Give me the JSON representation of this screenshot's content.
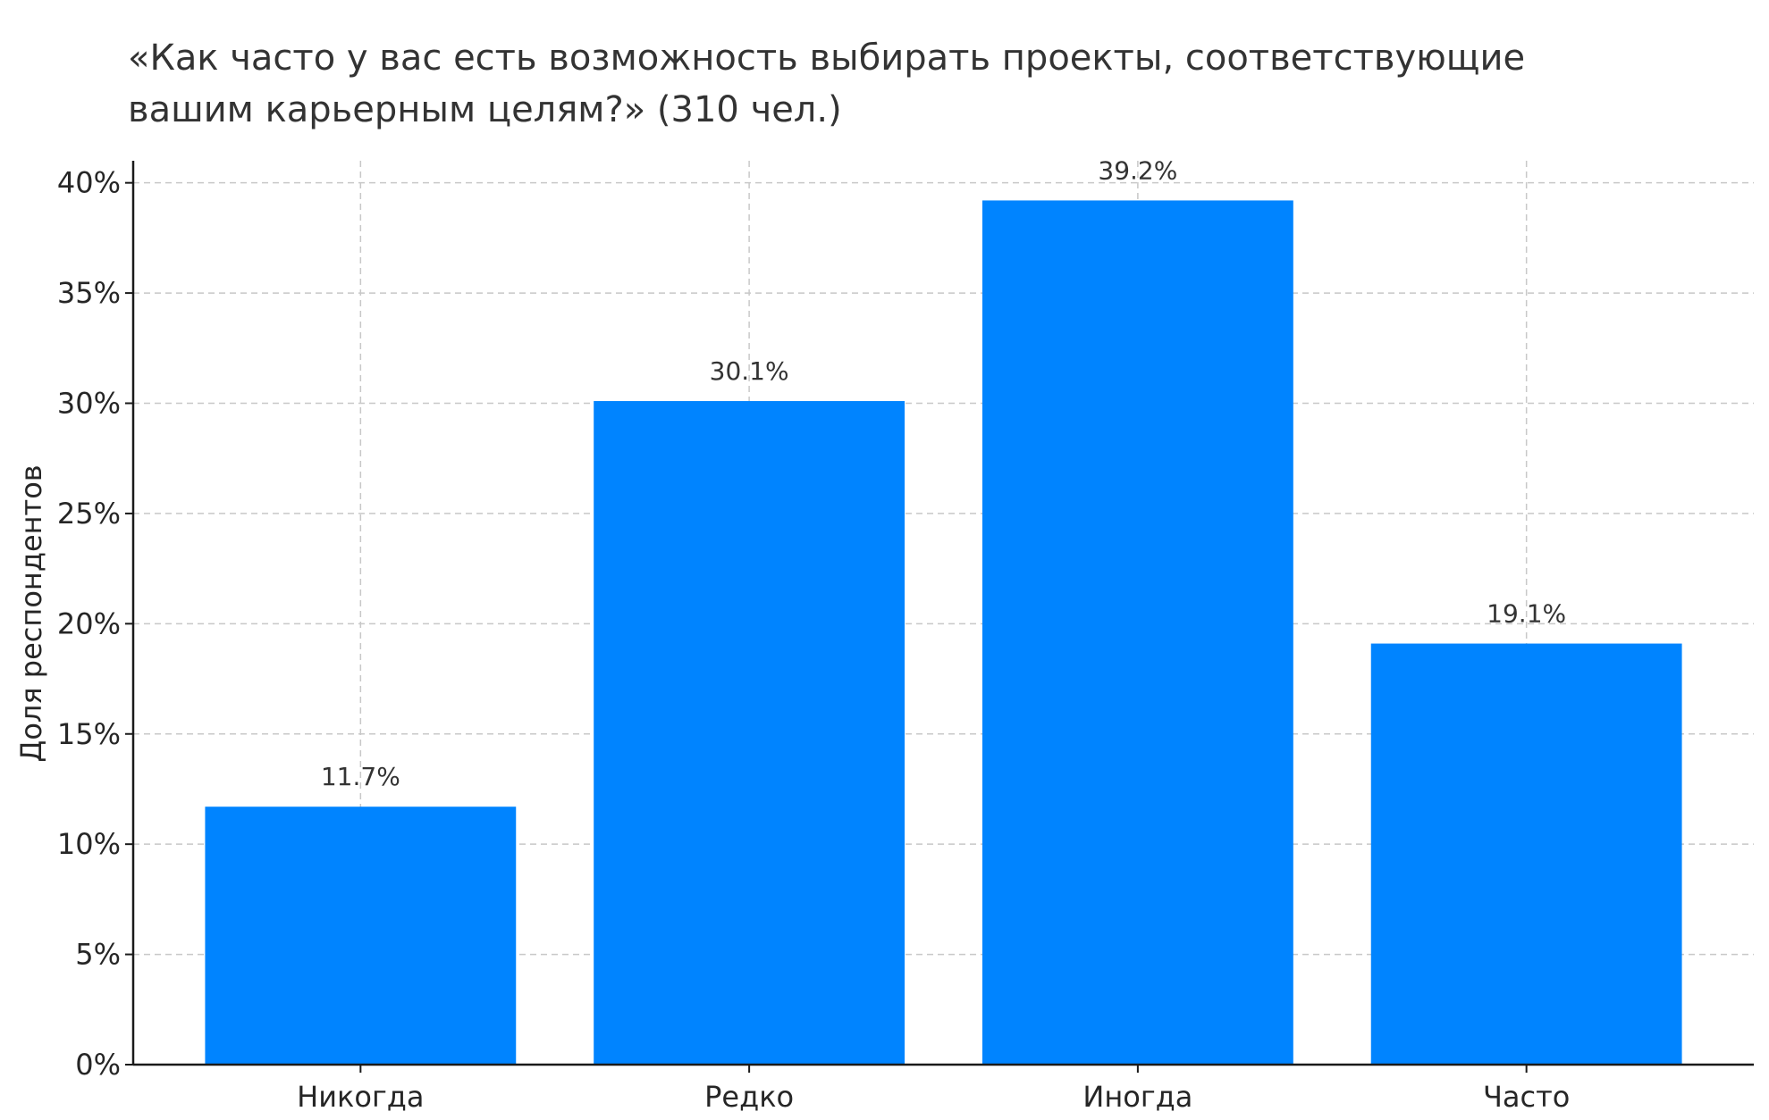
{
  "chart_data": {
    "type": "bar",
    "title_lines": [
      "«Как часто у вас есть возможность выбирать проекты, соответствующие",
      "вашим карьерным целям?» (310 чел.)"
    ],
    "categories": [
      "Никогда",
      "Редко",
      "Иногда",
      "Часто"
    ],
    "values": [
      11.7,
      30.1,
      39.2,
      19.1
    ],
    "value_labels": [
      "11.7%",
      "30.1%",
      "39.2%",
      "19.1%"
    ],
    "ylabel": "Доля респондентов",
    "xlabel": "",
    "ylim": [
      0,
      41
    ],
    "y_ticks": [
      0,
      5,
      10,
      15,
      20,
      25,
      30,
      35,
      40
    ],
    "y_tick_labels": [
      "0%",
      "5%",
      "10%",
      "15%",
      "20%",
      "25%",
      "30%",
      "35%",
      "40%"
    ],
    "grid": true,
    "bar_color": "#0084ff"
  }
}
